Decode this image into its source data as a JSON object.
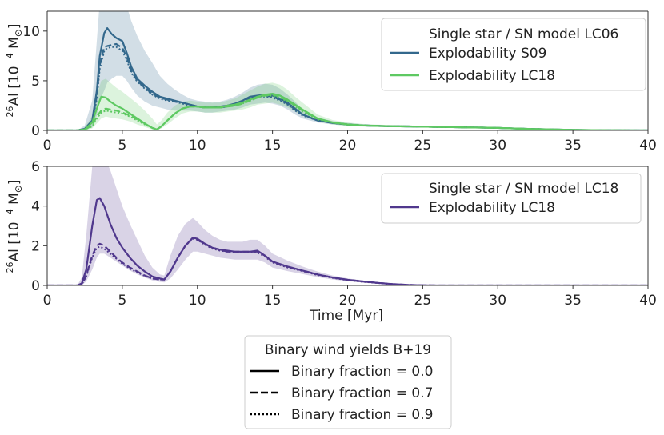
{
  "chart_data": [
    {
      "type": "line",
      "xlim": [
        0,
        40
      ],
      "ylim": [
        0,
        12
      ],
      "xticks": [
        0,
        5,
        10,
        15,
        20,
        25,
        30,
        35,
        40
      ],
      "yticks": [
        0,
        5,
        10
      ],
      "ylabel_sup": "26",
      "ylabel_main": "Al [10",
      "ylabel_exp": "−4",
      "ylabel_unit": " M",
      "ylabel_sun": "⊙",
      "ylabel_close": "]",
      "legend": {
        "placement": "top-right",
        "title": "Single star / SN model LC06",
        "entries": [
          "Explodability S09",
          "Explodability LC18"
        ]
      },
      "series": [
        {
          "name": "Explodability S09",
          "color": "#33688c",
          "x": [
            0,
            1,
            2,
            2.5,
            3,
            3.3,
            3.5,
            3.8,
            4,
            4.3,
            4.6,
            5,
            5.3,
            5.6,
            6,
            6.5,
            7,
            7.5,
            8,
            8.5,
            9,
            9.5,
            10,
            10.5,
            11,
            11.5,
            12,
            12.5,
            13,
            13.5,
            14,
            14.5,
            15,
            15.5,
            16,
            16.5,
            17,
            18,
            19,
            20,
            21,
            22,
            23,
            24,
            25,
            26,
            27,
            28,
            29,
            30,
            32,
            35,
            38,
            40
          ],
          "binary_0.0": [
            0,
            0,
            0,
            0.15,
            1.0,
            4.0,
            7.5,
            9.8,
            10.3,
            9.7,
            9.3,
            9.0,
            7.8,
            6.4,
            5.2,
            4.5,
            3.9,
            3.4,
            3.2,
            3.0,
            2.8,
            2.6,
            2.4,
            2.3,
            2.3,
            2.4,
            2.5,
            2.7,
            3.0,
            3.4,
            3.5,
            3.6,
            3.5,
            3.2,
            2.8,
            2.2,
            1.6,
            1.0,
            0.75,
            0.6,
            0.5,
            0.45,
            0.42,
            0.4,
            0.38,
            0.35,
            0.33,
            0.3,
            0.28,
            0.25,
            0.15,
            0.05,
            0.01,
            0
          ],
          "binary_0.7": [
            0,
            0,
            0,
            0.15,
            0.9,
            3.5,
            6.6,
            8.4,
            8.5,
            8.6,
            8.7,
            8.3,
            7.4,
            6.0,
            5.0,
            4.3,
            3.7,
            3.3,
            3.1,
            2.9,
            2.8,
            2.6,
            2.4,
            2.3,
            2.3,
            2.3,
            2.4,
            2.6,
            2.9,
            3.2,
            3.4,
            3.5,
            3.4,
            3.1,
            2.7,
            2.1,
            1.6,
            1.0,
            0.75,
            0.6,
            0.5,
            0.45,
            0.42,
            0.4,
            0.38,
            0.35,
            0.33,
            0.3,
            0.28,
            0.25,
            0.15,
            0.05,
            0.01,
            0
          ],
          "binary_0.9": [
            0,
            0,
            0,
            0.15,
            0.8,
            3.2,
            6.2,
            8.0,
            8.3,
            8.4,
            8.4,
            8.0,
            7.1,
            5.8,
            4.9,
            4.2,
            3.6,
            3.2,
            3.0,
            2.9,
            2.7,
            2.5,
            2.4,
            2.3,
            2.3,
            2.3,
            2.4,
            2.6,
            2.9,
            3.2,
            3.4,
            3.4,
            3.3,
            3.0,
            2.6,
            2.0,
            1.5,
            1.0,
            0.75,
            0.6,
            0.5,
            0.45,
            0.42,
            0.4,
            0.38,
            0.35,
            0.33,
            0.3,
            0.28,
            0.25,
            0.15,
            0.05,
            0.01,
            0
          ],
          "band_upper": [
            0,
            0,
            0,
            0.5,
            3.0,
            9.0,
            13.0,
            15.0,
            15.5,
            15.0,
            14.5,
            13.8,
            12.5,
            11.0,
            9.5,
            8.0,
            6.8,
            5.5,
            4.7,
            4.1,
            3.6,
            3.2,
            3.0,
            2.9,
            2.8,
            2.9,
            3.1,
            3.4,
            3.8,
            4.3,
            4.6,
            4.7,
            4.6,
            4.2,
            3.6,
            2.9,
            2.1,
            1.3,
            0.95,
            0.75,
            0.62,
            0.55,
            0.5,
            0.46,
            0.43,
            0.4,
            0.37,
            0.34,
            0.31,
            0.28,
            0.18,
            0.07,
            0.02,
            0
          ],
          "band_lower": [
            0,
            0,
            0,
            0,
            0.3,
            1.5,
            3.0,
            4.0,
            4.8,
            5.2,
            5.5,
            5.5,
            5.0,
            4.3,
            3.5,
            2.9,
            2.5,
            2.3,
            2.1,
            2.0,
            2.0,
            2.0,
            1.9,
            1.8,
            1.8,
            1.9,
            2.0,
            2.1,
            2.3,
            2.6,
            2.7,
            2.8,
            2.7,
            2.5,
            2.1,
            1.6,
            1.2,
            0.8,
            0.6,
            0.48,
            0.4,
            0.36,
            0.34,
            0.32,
            0.3,
            0.28,
            0.26,
            0.24,
            0.22,
            0.2,
            0.12,
            0.04,
            0.01,
            0
          ]
        },
        {
          "name": "Explodability LC18",
          "color": "#5ec962",
          "x": [
            0,
            1,
            2,
            2.5,
            3,
            3.3,
            3.6,
            3.9,
            4.2,
            4.6,
            5,
            5.5,
            6,
            6.5,
            7,
            7.3,
            7.6,
            8,
            8.5,
            9,
            9.5,
            10,
            10.5,
            11,
            11.5,
            12,
            12.5,
            13,
            13.5,
            14,
            14.5,
            15,
            15.5,
            16,
            16.5,
            17,
            18,
            19,
            20,
            21,
            22,
            23,
            24,
            25,
            26,
            27,
            28,
            29,
            30,
            32,
            35,
            38,
            40
          ],
          "binary_0.0": [
            0,
            0,
            0,
            0.1,
            0.8,
            2.2,
            3.4,
            3.3,
            2.9,
            2.5,
            2.2,
            1.7,
            1.2,
            0.7,
            0.25,
            0.1,
            0.4,
            1.0,
            1.7,
            2.2,
            2.4,
            2.4,
            2.3,
            2.3,
            2.3,
            2.5,
            2.6,
            2.8,
            3.1,
            3.4,
            3.6,
            3.7,
            3.5,
            3.1,
            2.6,
            2.1,
            1.2,
            0.8,
            0.6,
            0.5,
            0.45,
            0.42,
            0.4,
            0.38,
            0.35,
            0.33,
            0.3,
            0.28,
            0.25,
            0.15,
            0.05,
            0.01,
            0
          ],
          "binary_0.7": [
            0,
            0,
            0,
            0.1,
            0.5,
            1.4,
            2.0,
            2.2,
            2.1,
            2.0,
            1.8,
            1.5,
            1.1,
            0.7,
            0.25,
            0.1,
            0.4,
            1.0,
            1.7,
            2.2,
            2.4,
            2.4,
            2.3,
            2.3,
            2.3,
            2.4,
            2.5,
            2.7,
            3.0,
            3.3,
            3.5,
            3.6,
            3.4,
            3.0,
            2.5,
            2.0,
            1.2,
            0.8,
            0.6,
            0.5,
            0.45,
            0.42,
            0.4,
            0.38,
            0.35,
            0.33,
            0.3,
            0.28,
            0.25,
            0.15,
            0.05,
            0.01,
            0
          ],
          "binary_0.9": [
            0,
            0,
            0,
            0.1,
            0.4,
            1.2,
            1.8,
            2.0,
            1.9,
            1.8,
            1.7,
            1.4,
            1.0,
            0.6,
            0.25,
            0.1,
            0.4,
            1.0,
            1.7,
            2.2,
            2.4,
            2.4,
            2.3,
            2.3,
            2.3,
            2.4,
            2.5,
            2.7,
            3.0,
            3.3,
            3.5,
            3.5,
            3.3,
            2.9,
            2.4,
            1.9,
            1.1,
            0.8,
            0.6,
            0.5,
            0.45,
            0.42,
            0.4,
            0.38,
            0.35,
            0.33,
            0.3,
            0.28,
            0.25,
            0.15,
            0.05,
            0.01,
            0
          ],
          "band_upper": [
            0,
            0,
            0,
            0.3,
            1.5,
            3.5,
            5.0,
            5.2,
            4.8,
            4.3,
            3.9,
            3.3,
            2.7,
            2.0,
            1.2,
            0.6,
            1.0,
            1.8,
            2.5,
            2.9,
            3.0,
            2.9,
            2.8,
            2.8,
            2.8,
            3.0,
            3.2,
            3.6,
            4.0,
            4.4,
            4.7,
            4.8,
            4.6,
            4.1,
            3.4,
            2.8,
            1.6,
            1.05,
            0.8,
            0.65,
            0.58,
            0.53,
            0.5,
            0.46,
            0.43,
            0.4,
            0.37,
            0.34,
            0.31,
            0.2,
            0.08,
            0.02,
            0
          ],
          "band_lower": [
            0,
            0,
            0,
            0,
            0.2,
            0.7,
            1.2,
            1.4,
            1.3,
            1.2,
            1.1,
            0.9,
            0.6,
            0.35,
            0.1,
            0.02,
            0.2,
            0.6,
            1.2,
            1.7,
            1.9,
            1.9,
            1.8,
            1.8,
            1.8,
            1.9,
            2.0,
            2.1,
            2.3,
            2.6,
            2.7,
            2.8,
            2.6,
            2.3,
            1.9,
            1.5,
            0.9,
            0.6,
            0.45,
            0.38,
            0.34,
            0.32,
            0.3,
            0.28,
            0.26,
            0.24,
            0.22,
            0.2,
            0.18,
            0.11,
            0.04,
            0.01,
            0
          ]
        }
      ]
    },
    {
      "type": "line",
      "xlim": [
        0,
        40
      ],
      "ylim": [
        0,
        6
      ],
      "xticks": [
        0,
        5,
        10,
        15,
        20,
        25,
        30,
        35,
        40
      ],
      "yticks": [
        0,
        2,
        4,
        6
      ],
      "xlabel": "Time [Myr]",
      "ylabel_sup": "26",
      "ylabel_main": "Al [10",
      "ylabel_exp": "−4",
      "ylabel_unit": " M",
      "ylabel_sun": "⊙",
      "ylabel_close": "]",
      "legend": {
        "placement": "top-right",
        "title": "Single star / SN model LC18",
        "entries": [
          "Explodability LC18"
        ]
      },
      "series": [
        {
          "name": "Explodability LC18",
          "color": "#50388d",
          "x": [
            0,
            1,
            2,
            2.3,
            2.6,
            3.0,
            3.3,
            3.5,
            3.8,
            4.2,
            4.6,
            5,
            5.5,
            6,
            6.5,
            7,
            7.5,
            7.8,
            8.2,
            8.7,
            9.2,
            9.7,
            10,
            10.5,
            11,
            11.5,
            12,
            12.5,
            13,
            13.5,
            14,
            14.5,
            15,
            16,
            17,
            18,
            19,
            20,
            21,
            22,
            23,
            24,
            25,
            26,
            28,
            30,
            35,
            40
          ],
          "binary_0.0": [
            0,
            0,
            0,
            0.1,
            0.8,
            3.0,
            4.3,
            4.4,
            4.0,
            3.1,
            2.4,
            1.9,
            1.4,
            1.0,
            0.7,
            0.45,
            0.35,
            0.3,
            0.7,
            1.4,
            2.0,
            2.4,
            2.35,
            2.1,
            1.9,
            1.8,
            1.75,
            1.7,
            1.7,
            1.7,
            1.75,
            1.5,
            1.2,
            0.95,
            0.75,
            0.55,
            0.4,
            0.28,
            0.2,
            0.13,
            0.07,
            0.03,
            0.01,
            0,
            0,
            0,
            0,
            0
          ],
          "binary_0.7": [
            0,
            0,
            0,
            0.05,
            0.5,
            1.5,
            2.0,
            2.1,
            2.0,
            1.7,
            1.4,
            1.15,
            0.9,
            0.7,
            0.5,
            0.35,
            0.3,
            0.3,
            0.7,
            1.4,
            2.0,
            2.4,
            2.3,
            2.1,
            1.9,
            1.8,
            1.7,
            1.7,
            1.7,
            1.7,
            1.7,
            1.5,
            1.2,
            0.95,
            0.75,
            0.55,
            0.4,
            0.28,
            0.2,
            0.13,
            0.07,
            0.03,
            0.01,
            0,
            0,
            0,
            0,
            0
          ],
          "binary_0.9": [
            0,
            0,
            0,
            0.05,
            0.45,
            1.4,
            1.9,
            1.95,
            1.85,
            1.6,
            1.35,
            1.1,
            0.85,
            0.65,
            0.48,
            0.34,
            0.3,
            0.3,
            0.7,
            1.4,
            2.0,
            2.35,
            2.3,
            2.05,
            1.85,
            1.75,
            1.7,
            1.65,
            1.65,
            1.65,
            1.65,
            1.45,
            1.15,
            0.9,
            0.72,
            0.52,
            0.38,
            0.26,
            0.18,
            0.12,
            0.06,
            0.03,
            0.01,
            0,
            0,
            0,
            0,
            0
          ],
          "band_upper": [
            0,
            0,
            0,
            0.4,
            2.5,
            6.0,
            6.5,
            6.5,
            6.5,
            5.8,
            4.9,
            4.0,
            3.1,
            2.3,
            1.5,
            0.9,
            0.55,
            0.5,
            1.5,
            2.5,
            3.1,
            3.4,
            3.2,
            2.8,
            2.5,
            2.3,
            2.2,
            2.2,
            2.2,
            2.3,
            2.3,
            2.0,
            1.6,
            1.25,
            0.95,
            0.7,
            0.5,
            0.35,
            0.25,
            0.16,
            0.09,
            0.04,
            0.015,
            0,
            0,
            0,
            0,
            0
          ],
          "band_lower": [
            0,
            0,
            0,
            0,
            0.2,
            0.8,
            1.4,
            1.6,
            1.6,
            1.4,
            1.2,
            1.0,
            0.75,
            0.55,
            0.4,
            0.25,
            0.18,
            0.15,
            0.35,
            0.8,
            1.3,
            1.7,
            1.7,
            1.6,
            1.5,
            1.4,
            1.35,
            1.3,
            1.3,
            1.3,
            1.3,
            1.15,
            0.9,
            0.72,
            0.57,
            0.42,
            0.3,
            0.21,
            0.15,
            0.1,
            0.05,
            0.02,
            0.01,
            0,
            0,
            0,
            0,
            0
          ]
        }
      ]
    }
  ],
  "bottom_legend": {
    "title": "Binary wind yields B+19",
    "entries": [
      {
        "label": "Binary fraction = 0.0",
        "style": "solid"
      },
      {
        "label": "Binary fraction = 0.7",
        "style": "dashed"
      },
      {
        "label": "Binary fraction = 0.9",
        "style": "dotted"
      }
    ]
  }
}
